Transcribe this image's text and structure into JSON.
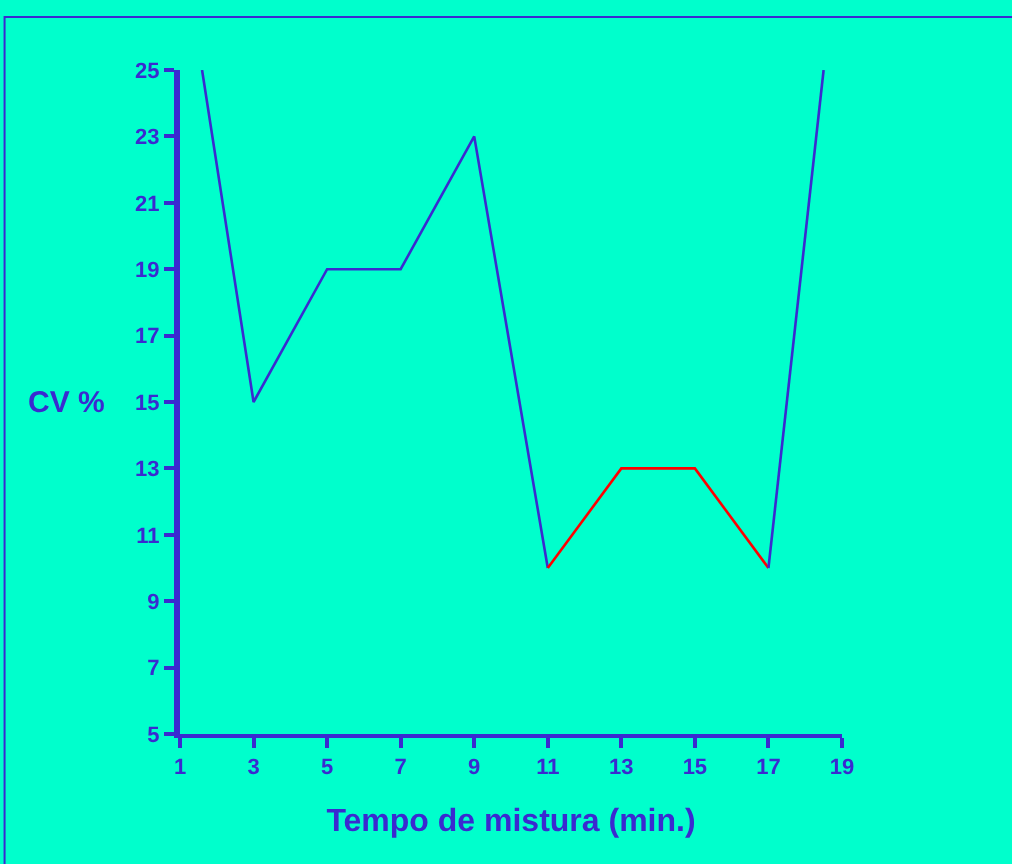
{
  "chart_data": {
    "type": "line",
    "xlabel": "Tempo de mistura (min.)",
    "ylabel": "CV %",
    "xlim": [
      1,
      19
    ],
    "xticks": [
      1,
      3,
      5,
      7,
      9,
      11,
      13,
      15,
      17,
      19
    ],
    "ylim": [
      5,
      25
    ],
    "yticks": [
      5,
      7,
      9,
      11,
      13,
      15,
      17,
      19,
      21,
      23,
      25
    ],
    "grid": false,
    "marker": "none",
    "line_style": "solid",
    "series": [
      {
        "color": "#3a2ad0",
        "x": [
          1.6,
          3,
          5,
          7,
          9,
          11
        ],
        "values": [
          25,
          15,
          19,
          19,
          23,
          10
        ]
      },
      {
        "color": "#ff0000",
        "x": [
          11,
          13,
          15,
          17
        ],
        "values": [
          10,
          13,
          13,
          10
        ]
      },
      {
        "color": "#3a2ad0",
        "x": [
          17,
          18.5
        ],
        "values": [
          10,
          25
        ]
      }
    ]
  }
}
